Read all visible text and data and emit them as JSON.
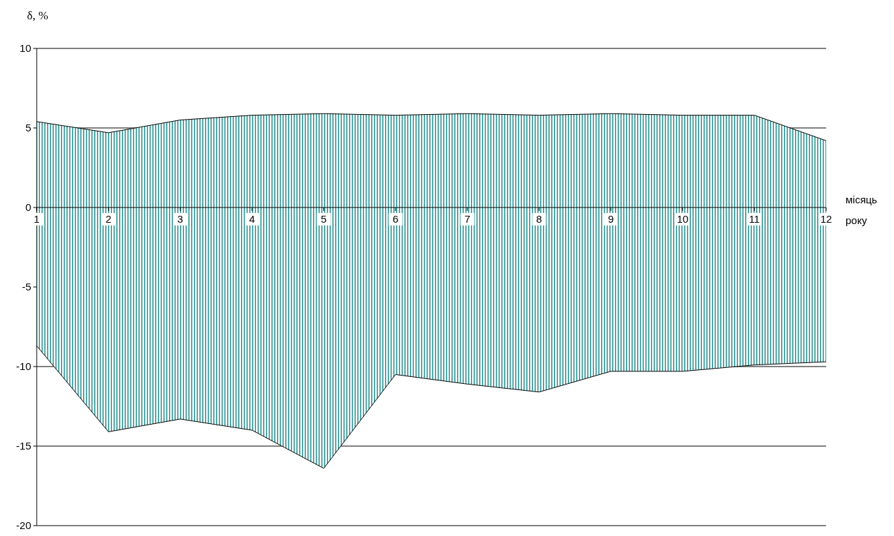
{
  "chart_data": {
    "type": "area",
    "ylabel": "δ, %",
    "xlabel": "місяць року",
    "x": [
      1,
      2,
      3,
      4,
      5,
      6,
      7,
      8,
      9,
      10,
      11,
      12
    ],
    "series": [
      {
        "color": "#2e9494",
        "values": [
          5.4,
          4.7,
          5.5,
          5.8,
          5.9,
          5.8,
          5.9,
          5.8,
          5.9,
          5.8,
          5.8,
          4.2
        ]
      },
      {
        "color": "#2e9494",
        "values": [
          -8.7,
          -14.1,
          -13.3,
          -14.0,
          -16.4,
          -10.5,
          -11.1,
          -11.6,
          -10.3,
          -10.3,
          -9.9,
          -9.7
        ]
      }
    ],
    "xlim": [
      1,
      12
    ],
    "xticks": [
      1,
      2,
      3,
      4,
      5,
      6,
      7,
      8,
      9,
      10,
      11,
      12
    ],
    "ylim": [
      -20,
      10
    ],
    "yticks": [
      -20,
      -15,
      -10,
      -5,
      0,
      5,
      10
    ],
    "grid": "y"
  }
}
